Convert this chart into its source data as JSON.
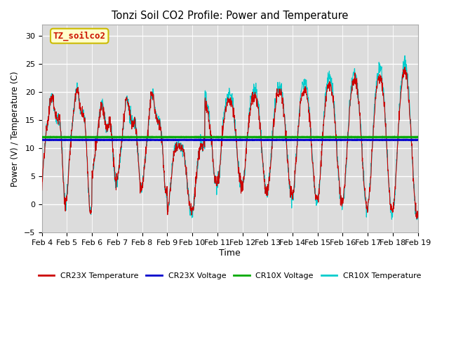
{
  "title": "Tonzi Soil CO2 Profile: Power and Temperature",
  "ylabel": "Power (V) / Temperature (C)",
  "xlabel": "Time",
  "ylim": [
    -5,
    32
  ],
  "yticks": [
    -5,
    0,
    5,
    10,
    15,
    20,
    25,
    30
  ],
  "cr23x_voltage_val": 11.5,
  "cr10x_voltage_val": 12.0,
  "annotation_text": "TZ_soilco2",
  "legend_entries": [
    "CR23X Temperature",
    "CR23X Voltage",
    "CR10X Voltage",
    "CR10X Temperature"
  ],
  "line_colors": {
    "cr23x_temp": "#cc0000",
    "cr23x_volt": "#0000cc",
    "cr10x_volt": "#00aa00",
    "cr10x_temp": "#00cccc"
  },
  "xtick_labels": [
    "Feb 4",
    "Feb 5",
    "Feb 6",
    "Feb 7",
    "Feb 8",
    "Feb 9",
    "Feb 10",
    "Feb 11",
    "Feb 12",
    "Feb 13",
    "Feb 14",
    "Feb 15",
    "Feb 16",
    "Feb 17",
    "Feb 18",
    "Feb 19"
  ],
  "bg_color": "#dcdcdc",
  "fig_bg": "#ffffff"
}
